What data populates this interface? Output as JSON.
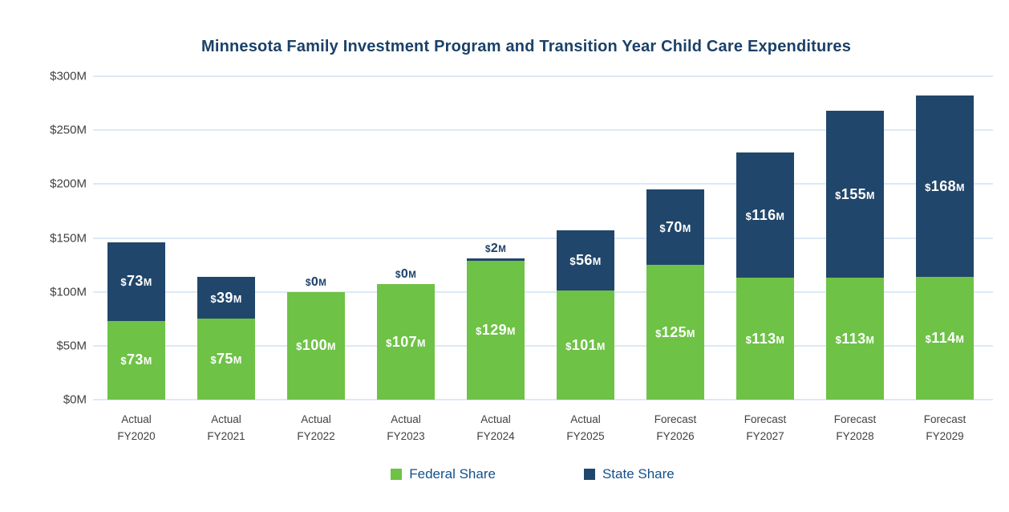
{
  "chart_data": {
    "type": "bar",
    "stacked": true,
    "title": "Minnesota Family Investment Program and Transition Year Child Care Expenditures",
    "categories": [
      {
        "period": "Actual",
        "year": "FY2020"
      },
      {
        "period": "Actual",
        "year": "FY2021"
      },
      {
        "period": "Actual",
        "year": "FY2022"
      },
      {
        "period": "Actual",
        "year": "FY2023"
      },
      {
        "period": "Actual",
        "year": "FY2024"
      },
      {
        "period": "Actual",
        "year": "FY2025"
      },
      {
        "period": "Forecast",
        "year": "FY2026"
      },
      {
        "period": "Forecast",
        "year": "FY2027"
      },
      {
        "period": "Forecast",
        "year": "FY2028"
      },
      {
        "period": "Forecast",
        "year": "FY2029"
      }
    ],
    "series": [
      {
        "name": "Federal Share",
        "color": "#6EC246",
        "values": [
          73,
          75,
          100,
          107,
          129,
          101,
          125,
          113,
          113,
          114
        ]
      },
      {
        "name": "State Share",
        "color": "#21466B",
        "values": [
          73,
          39,
          0,
          0,
          2,
          56,
          70,
          116,
          155,
          168
        ]
      }
    ],
    "value_prefix": "$",
    "value_suffix": "M",
    "yticks": [
      {
        "value": 300,
        "label": "$300M"
      },
      {
        "value": 250,
        "label": "$250M"
      },
      {
        "value": 200,
        "label": "$200M"
      },
      {
        "value": 150,
        "label": "$150M"
      },
      {
        "value": 100,
        "label": "$100M"
      },
      {
        "value": 50,
        "label": "$50M"
      },
      {
        "value": 0,
        "label": "$0M"
      }
    ],
    "ylim": [
      0,
      300
    ],
    "grid": true,
    "legend_position": "bottom"
  },
  "colors": {
    "title_text": "#1B4168",
    "legend_text": "#14508C",
    "gridline": "#DCE9F5",
    "axis_text": "#414141",
    "bar_label_inside": "#ffffff",
    "bar_label_outside": "#1B4168"
  }
}
